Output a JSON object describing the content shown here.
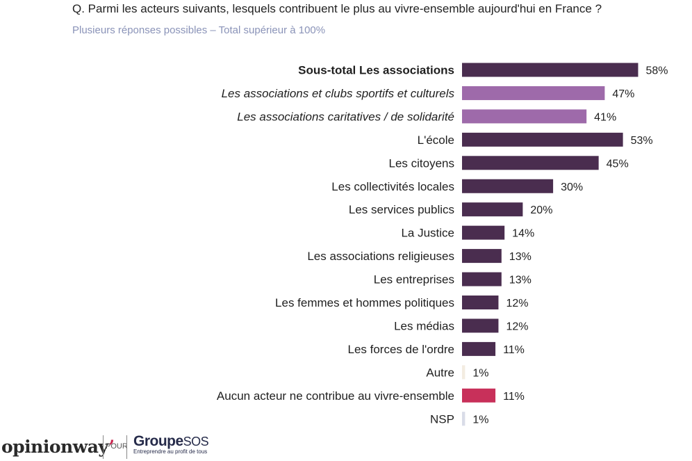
{
  "header": {
    "question": "Q. Parmi les acteurs suivants, lesquels contribuent le plus au vivre-ensemble aujourd'hui en France ?",
    "subtitle": "Plusieurs réponses possibles – Total supérieur à 100%"
  },
  "chart_data": {
    "type": "bar",
    "orientation": "horizontal",
    "title": "Q. Parmi les acteurs suivants, lesquels contribuent le plus au vivre-ensemble aujourd'hui en France ?",
    "subtitle": "Plusieurs réponses possibles – Total supérieur à 100%",
    "value_suffix": "%",
    "xlim": [
      0,
      60
    ],
    "categories": [
      "Sous-total Les associations",
      "Les associations et clubs sportifs et culturels",
      "Les associations caritatives / de solidarité",
      "L'école",
      "Les citoyens",
      "Les collectivités locales",
      "Les services publics",
      "La Justice",
      "Les associations religieuses",
      "Les entreprises",
      "Les femmes et hommes politiques",
      "Les médias",
      "Les forces de l'ordre",
      "Autre",
      "Aucun acteur ne contribue au vivre-ensemble",
      "NSP"
    ],
    "values": [
      58,
      47,
      41,
      53,
      45,
      30,
      20,
      14,
      13,
      13,
      12,
      12,
      11,
      1,
      11,
      1
    ],
    "value_labels": [
      "58%",
      "47%",
      "41%",
      "53%",
      "45%",
      "30%",
      "20%",
      "14%",
      "13%",
      "13%",
      "12%",
      "12%",
      "11%",
      "1%",
      "11%",
      "1%"
    ],
    "styles": [
      "bold",
      "italic",
      "italic",
      "normal",
      "normal",
      "normal",
      "normal",
      "normal",
      "normal",
      "normal",
      "normal",
      "normal",
      "normal",
      "normal",
      "normal",
      "normal"
    ],
    "colors": [
      "#4a2d4f",
      "#9e6aaa",
      "#9e6aaa",
      "#4a2d4f",
      "#4a2d4f",
      "#4a2d4f",
      "#4a2d4f",
      "#4a2d4f",
      "#4a2d4f",
      "#4a2d4f",
      "#4a2d4f",
      "#4a2d4f",
      "#4a2d4f",
      "#f3ece1",
      "#c8305a",
      "#d9dce8"
    ]
  },
  "footer": {
    "brand": "opinionway",
    "pour": "POUR",
    "partner_main": "Groupe",
    "partner_sos": "SOS",
    "partner_tagline": "Entreprendre au profit de tous"
  }
}
